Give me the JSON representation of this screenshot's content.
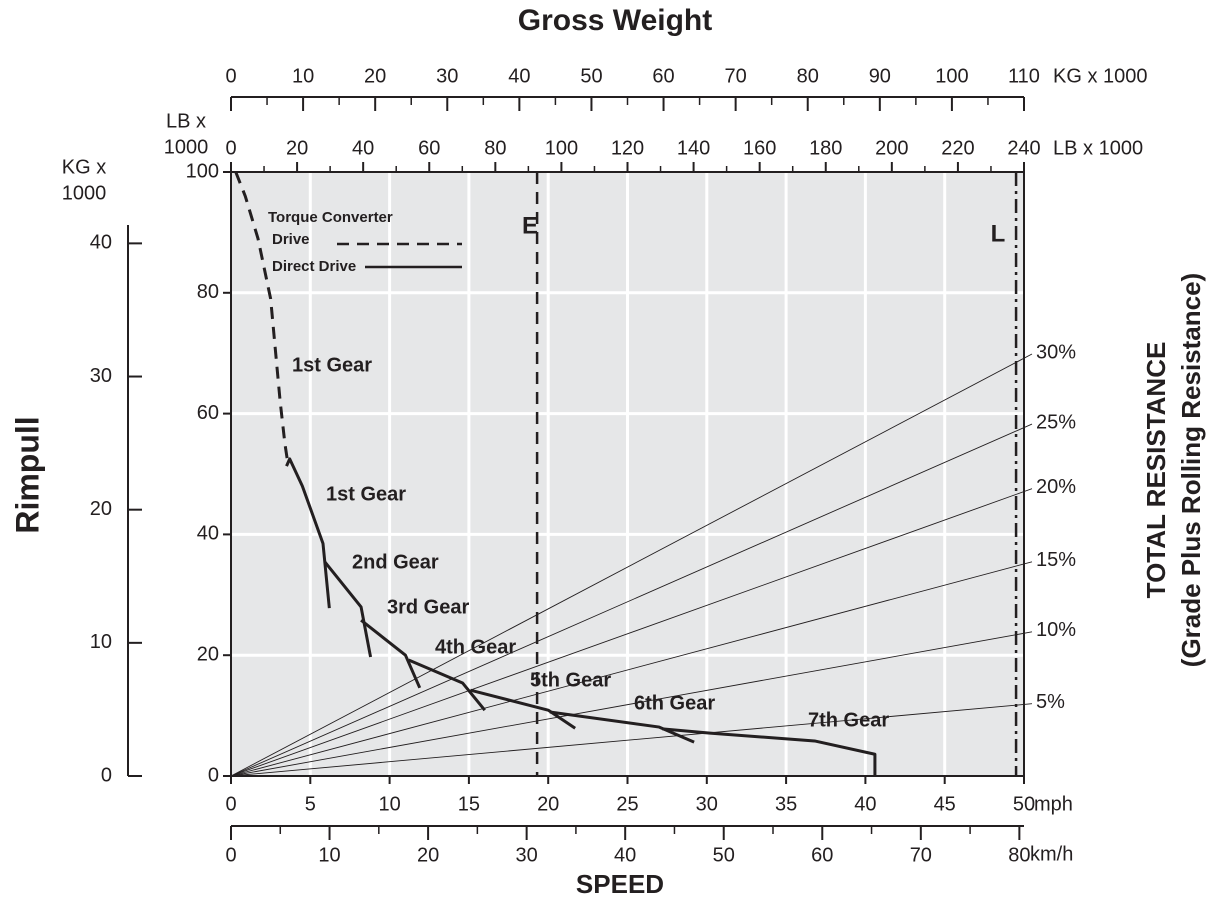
{
  "chart_data": {
    "type": "line",
    "title": "Gross Weight",
    "y_label": "Rimpull",
    "x_label": "SPEED",
    "x_unit": "mph",
    "xlim": [
      0,
      50
    ],
    "xticks": [
      0,
      5,
      10,
      15,
      20,
      25,
      30,
      35,
      40,
      45,
      50
    ],
    "ylim": [
      0,
      100
    ],
    "yticks": [
      0,
      20,
      40,
      60,
      80,
      100
    ],
    "y_unit_lines": [
      "LB x",
      "1000"
    ],
    "grid": true,
    "kmh_axis": {
      "unit": "km/h",
      "lim": [
        0,
        80.47
      ],
      "ticks": [
        0,
        10,
        20,
        30,
        40,
        50,
        60,
        70,
        80
      ],
      "minor_ticks": [
        5,
        15,
        25,
        35,
        45,
        55,
        65,
        75
      ]
    },
    "kg_rimpull_axis": {
      "unit_lines": [
        "KG x",
        "1000"
      ],
      "lim": [
        0,
        45.36
      ],
      "ticks": [
        0,
        10,
        20,
        30,
        40
      ]
    },
    "gross_weight_lb_axis": {
      "unit": "LB x 1000",
      "lim": [
        0,
        240
      ],
      "ticks": [
        0,
        20,
        40,
        60,
        80,
        100,
        120,
        140,
        160,
        180,
        200,
        220,
        240
      ],
      "minor_ticks": [
        10,
        30,
        50,
        70,
        90,
        110,
        130,
        150,
        170,
        190,
        210,
        230
      ]
    },
    "gross_weight_kg_axis": {
      "unit": "KG x 1000",
      "lim": [
        0,
        110
      ],
      "ticks": [
        0,
        10,
        20,
        30,
        40,
        50,
        60,
        70,
        80,
        90,
        100,
        110
      ],
      "minor_ticks": [
        5,
        15,
        25,
        35,
        45,
        55,
        65,
        75,
        85,
        95,
        105
      ]
    },
    "legend": [
      {
        "lines": [
          "Torque Converter",
          "Drive"
        ],
        "style": "dashed"
      },
      {
        "lines": [
          "Direct Drive"
        ],
        "style": "solid"
      }
    ],
    "series": [
      {
        "name": "1st Gear",
        "style": "dashed",
        "x": [
          0.3,
          0.9,
          1.7,
          2.5,
          3.1,
          3.4,
          3.6
        ],
        "values": [
          100,
          96,
          89,
          79,
          62,
          55,
          51.5
        ]
      },
      {
        "name": "1st Gear",
        "style": "solid",
        "x": [
          3.5,
          3.7,
          4.5,
          5.8,
          6.2
        ],
        "values": [
          51.3,
          52.5,
          48,
          38.5,
          27.8
        ]
      },
      {
        "name": "2nd Gear",
        "style": "solid",
        "x": [
          5.9,
          8.2,
          8.8
        ],
        "values": [
          35.5,
          28,
          19.7
        ]
      },
      {
        "name": "3rd Gear",
        "style": "solid",
        "x": [
          8.2,
          11.0,
          11.9
        ],
        "values": [
          25.8,
          20,
          14.6
        ]
      },
      {
        "name": "4th Gear",
        "style": "solid",
        "x": [
          11.2,
          14.6,
          16.0
        ],
        "values": [
          19.2,
          15.4,
          10.9
        ]
      },
      {
        "name": "5th Gear",
        "style": "solid",
        "x": [
          15.1,
          20.0,
          21.7
        ],
        "values": [
          14.2,
          10.9,
          7.9
        ]
      },
      {
        "name": "6th Gear",
        "style": "solid",
        "x": [
          20.1,
          27.0,
          29.2
        ],
        "values": [
          10.6,
          8.1,
          5.6
        ]
      },
      {
        "name": "7th Gear",
        "style": "solid",
        "x": [
          27.2,
          30.2,
          36.8,
          40.6,
          40.6
        ],
        "values": [
          7.8,
          7.1,
          5.8,
          3.6,
          0
        ]
      }
    ],
    "resistance_label": [
      "TOTAL RESISTANCE",
      "(Grade Plus Rolling Resistance)"
    ],
    "resistance_lines": [
      {
        "label": "30%",
        "end_rimpull": 69.7
      },
      {
        "label": "25%",
        "end_rimpull": 58.1
      },
      {
        "label": "20%",
        "end_rimpull": 47.4
      },
      {
        "label": "15%",
        "end_rimpull": 35.3
      },
      {
        "label": "10%",
        "end_rimpull": 23.7
      },
      {
        "label": "5%",
        "end_rimpull": 11.8
      }
    ],
    "vlines": [
      {
        "label": "E",
        "x": 19.3,
        "style": "dashed"
      },
      {
        "label": "L",
        "x": 49.5,
        "style": "dashdot"
      }
    ]
  }
}
